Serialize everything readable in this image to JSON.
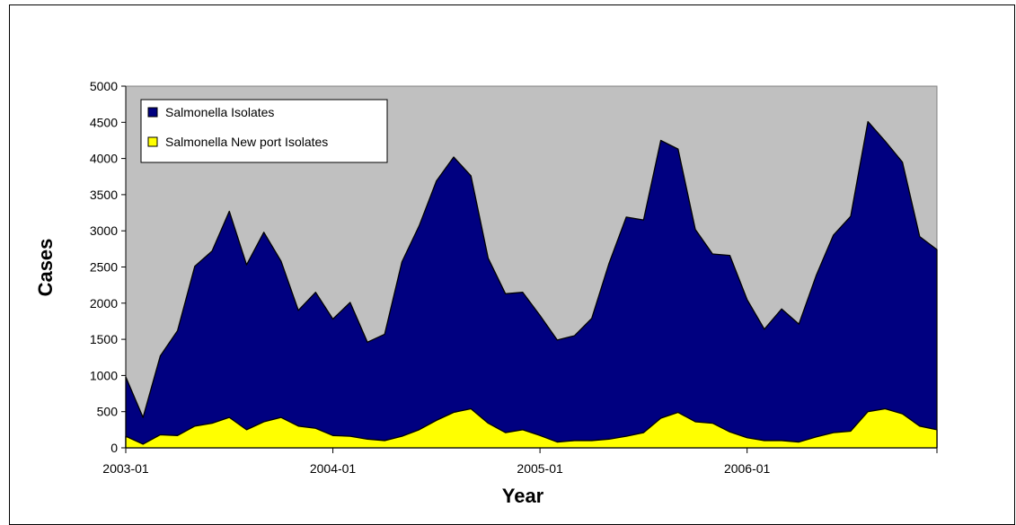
{
  "chart_data": {
    "type": "area",
    "title": "",
    "xlabel": "Year",
    "ylabel": "Cases",
    "ylim": [
      0,
      5000
    ],
    "yticks": [
      0,
      500,
      1000,
      1500,
      2000,
      2500,
      3000,
      3500,
      4000,
      4500,
      5000
    ],
    "xtick_labels": [
      "2003-01",
      "2004-01",
      "2005-01",
      "2006-01"
    ],
    "x": [
      "2003-01",
      "2003-02",
      "2003-03",
      "2003-04",
      "2003-05",
      "2003-06",
      "2003-07",
      "2003-08",
      "2003-09",
      "2003-10",
      "2003-11",
      "2003-12",
      "2004-01",
      "2004-02",
      "2004-03",
      "2004-04",
      "2004-05",
      "2004-06",
      "2004-07",
      "2004-08",
      "2004-09",
      "2004-10",
      "2004-11",
      "2004-12",
      "2005-01",
      "2005-02",
      "2005-03",
      "2005-04",
      "2005-05",
      "2005-06",
      "2005-07",
      "2005-08",
      "2005-09",
      "2005-10",
      "2005-11",
      "2005-12",
      "2006-01",
      "2006-02",
      "2006-03",
      "2006-04",
      "2006-05",
      "2006-06",
      "2006-07",
      "2006-08",
      "2006-09",
      "2006-10",
      "2006-11",
      "2006-12"
    ],
    "series": [
      {
        "name": "Salmonella Isolates",
        "color": "#000080",
        "values": [
          980,
          420,
          1270,
          1620,
          2510,
          2720,
          3270,
          2530,
          2980,
          2580,
          1900,
          2150,
          1780,
          2010,
          1460,
          1570,
          2570,
          3070,
          3690,
          4020,
          3760,
          2620,
          2130,
          2150,
          1830,
          1490,
          1550,
          1790,
          2550,
          3190,
          3150,
          4250,
          4130,
          3020,
          2680,
          2660,
          2050,
          1640,
          1920,
          1710,
          2380,
          2940,
          3200,
          4510,
          4240,
          3950,
          2920,
          2740
        ]
      },
      {
        "name": "Salmonella New port Isolates",
        "color": "#ffff00",
        "values": [
          160,
          50,
          180,
          170,
          300,
          340,
          420,
          250,
          360,
          420,
          300,
          270,
          170,
          160,
          120,
          100,
          160,
          250,
          380,
          490,
          540,
          340,
          210,
          250,
          170,
          80,
          100,
          100,
          120,
          160,
          210,
          410,
          490,
          360,
          340,
          220,
          140,
          100,
          100,
          80,
          150,
          210,
          230,
          500,
          540,
          470,
          300,
          250
        ]
      }
    ],
    "legend": "top-left",
    "plot_background": "#c0c0c0"
  }
}
